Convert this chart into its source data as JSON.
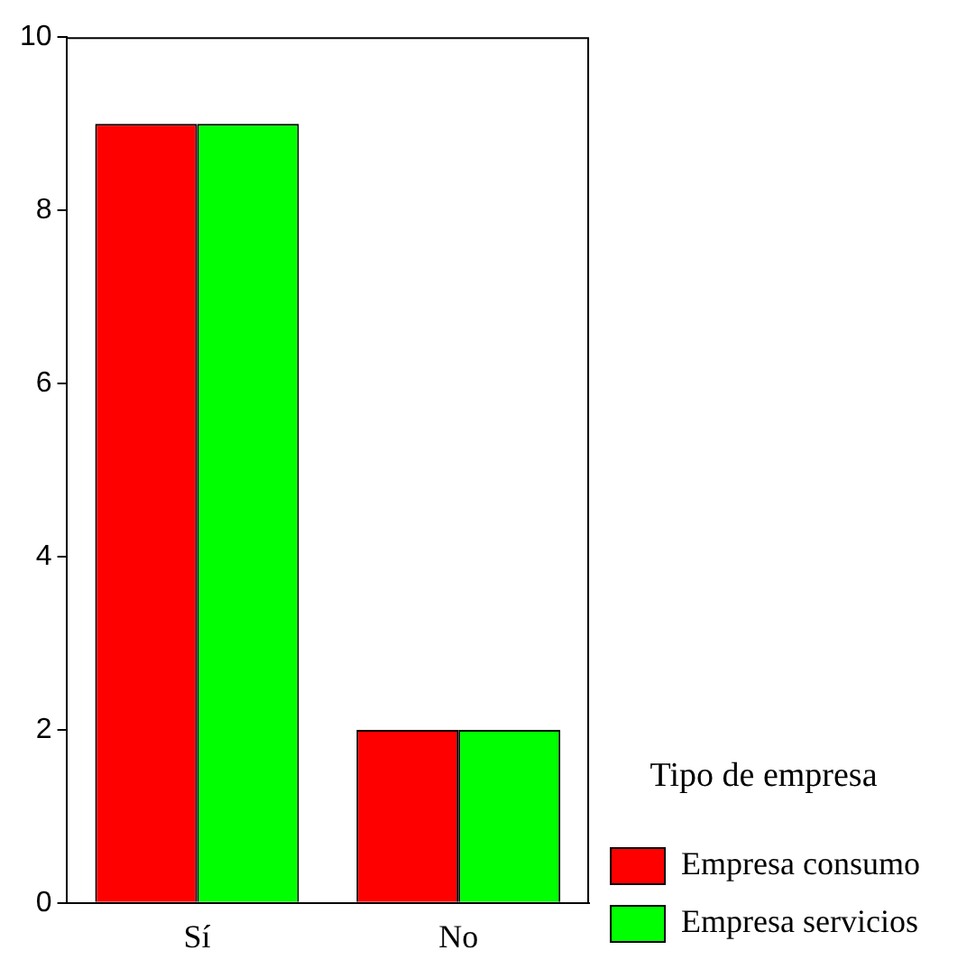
{
  "chart_data": {
    "type": "bar",
    "categories": [
      "Sí",
      "No"
    ],
    "series": [
      {
        "name": "Empresa consumo",
        "color": "#ff0000",
        "values": [
          9,
          2
        ]
      },
      {
        "name": "Empresa servicios",
        "color": "#00ff00",
        "values": [
          9,
          2
        ]
      }
    ],
    "ylim": [
      0,
      10
    ],
    "yticks": [
      0,
      2,
      4,
      6,
      8,
      10
    ],
    "grid": false,
    "legend": "bottom right",
    "legend_title": "Tipo de empresa"
  }
}
